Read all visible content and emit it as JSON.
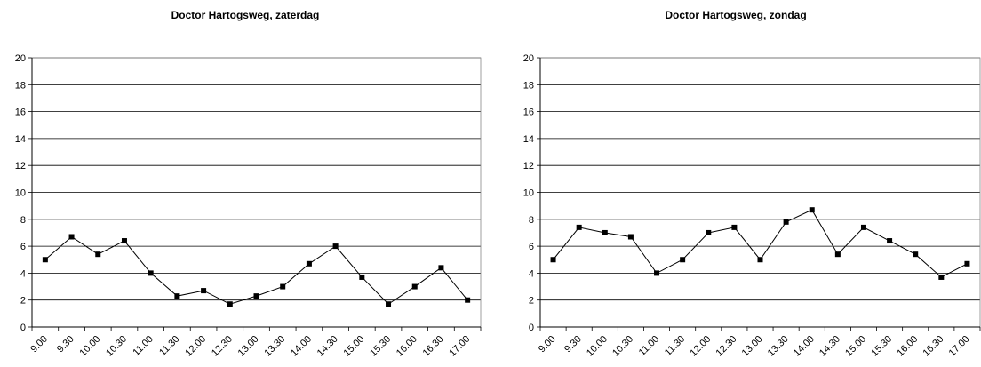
{
  "chart_data": [
    {
      "type": "line",
      "title": "Doctor Hartogsweg, zaterdag",
      "xlabel": "",
      "ylabel": "",
      "ylim": [
        0,
        20
      ],
      "yticks": [
        "0",
        "2",
        "4",
        "6",
        "8",
        "10",
        "12",
        "14",
        "16",
        "18",
        "20"
      ],
      "categories": [
        "9.00",
        "9.30",
        "10.00",
        "10.30",
        "11.00",
        "11.30",
        "12.00",
        "12.30",
        "13.00",
        "13.30",
        "14.00",
        "14.30",
        "15.00",
        "15.30",
        "16.00",
        "16.30",
        "17.00"
      ],
      "values": [
        5,
        6.7,
        5.4,
        6.4,
        4.0,
        2.3,
        2.7,
        1.7,
        2.3,
        3.0,
        4.7,
        6.0,
        3.7,
        1.7,
        3.0,
        4.4,
        2.0
      ],
      "grid": true,
      "legend": "none"
    },
    {
      "type": "line",
      "title": "Doctor Hartogsweg, zondag",
      "xlabel": "",
      "ylabel": "",
      "ylim": [
        0,
        20
      ],
      "yticks": [
        "0",
        "2",
        "4",
        "6",
        "8",
        "10",
        "12",
        "14",
        "16",
        "18",
        "20"
      ],
      "categories": [
        "9.00",
        "9.30",
        "10.00",
        "10.30",
        "11.00",
        "11.30",
        "12.00",
        "12.30",
        "13.00",
        "13.30",
        "14.00",
        "14.30",
        "15.00",
        "15.30",
        "16.00",
        "16.30",
        "17.00"
      ],
      "values": [
        5.0,
        7.4,
        7.0,
        6.7,
        4.0,
        5.0,
        7.0,
        7.4,
        5.0,
        7.8,
        8.7,
        5.4,
        7.4,
        6.4,
        5.4,
        3.7,
        4.7
      ],
      "grid": true,
      "legend": "none"
    }
  ]
}
